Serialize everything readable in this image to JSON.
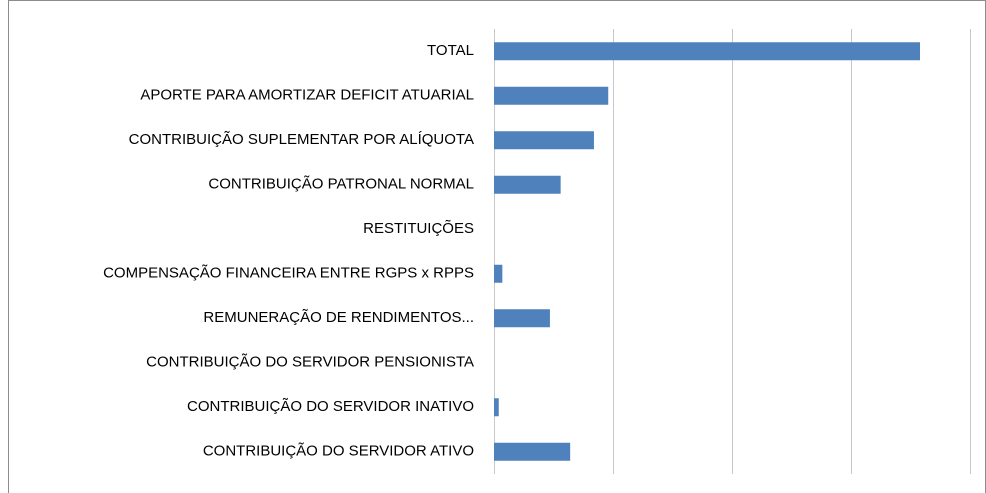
{
  "chart_data": {
    "type": "hbar",
    "categories": [
      "TOTAL",
      "APORTE PARA AMORTIZAR DEFICIT ATUARIAL",
      "CONTRIBUIÇÃO SUPLEMENTAR POR ALÍQUOTA",
      "CONTRIBUIÇÃO PATRONAL NORMAL",
      "RESTITUIÇÕES",
      "COMPENSAÇÃO FINANCEIRA ENTRE RGPS x RPPS",
      "REMUNERAÇÃO DE RENDIMENTOS...",
      "CONTRIBUIÇÃO DO SERVIDOR PENSIONISTA",
      "CONTRIBUIÇÃO DO SERVIDOR INATIVO",
      "CONTRIBUIÇÃO DO SERVIDOR ATIVO"
    ],
    "values": [
      3.58,
      0.96,
      0.84,
      0.56,
      0,
      0.07,
      0.47,
      0,
      0.04,
      0.64
    ],
    "color": "#4f81bd",
    "xlim": [
      0,
      4
    ],
    "xticks": [
      0,
      1,
      2,
      3,
      4
    ],
    "grid": true
  }
}
